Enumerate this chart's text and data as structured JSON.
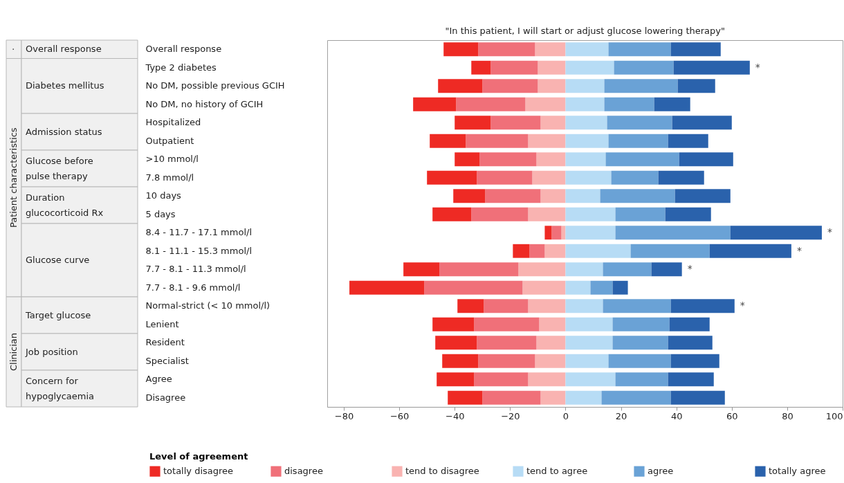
{
  "chart_data": {
    "type": "bar",
    "orientation": "horizontal",
    "stacked": true,
    "title": "\"In this patient, I will start or adjust glucose lowering therapy\"",
    "legend_title": "Level of agreement",
    "legend": "bottom",
    "grid": false,
    "categories": [
      "Overall response",
      "Type 2 diabetes",
      "No DM, possible previous GCIH",
      "No DM, no history of GCIH",
      "Hospitalized",
      "Outpatient",
      ">10 mmol/l",
      "7.8 mmol/l",
      "10 days",
      "5 days",
      "8.4 - 11.7 - 17.1 mmol/l",
      "8.1 - 11.1 - 15.3 mmol/l",
      "7.7 - 8.1 - 11.3 mmol/l",
      "7.7 - 8.1 - 9.6 mmol/l",
      "Normal-strict (< 10 mmol/l)",
      "Lenient",
      "Resident",
      "Specialist",
      "Agree",
      "Disagree"
    ],
    "xlim": [
      -86,
      100
    ],
    "xticks": [
      -80,
      -60,
      -40,
      -20,
      0,
      20,
      40,
      60,
      80,
      100
    ],
    "series": [
      {
        "name": "tend to disagree",
        "color": "#f9b3b1",
        "values": [
          -11,
          -10,
          -10,
          -14.5,
          -9,
          -13.5,
          -10.5,
          -12,
          -9,
          -13.5,
          -1.5,
          -7.5,
          -17,
          -15.5,
          -13.5,
          -9.5,
          -10.5,
          -11,
          -13.5,
          -9
        ]
      },
      {
        "name": "disagree",
        "color": "#f07079",
        "values": [
          -20.5,
          -17,
          -20,
          -25,
          -18,
          -22.5,
          -20.5,
          -20,
          -20,
          -20.5,
          -3.5,
          -5.5,
          -28.5,
          -35.5,
          -16,
          -23.5,
          -21.5,
          -20.5,
          -19.5,
          -21
        ]
      },
      {
        "name": "totally disagree",
        "color": "#ee2a24",
        "values": [
          -12.5,
          -7,
          -16,
          -15.5,
          -13,
          -13,
          -9,
          -18,
          -11.5,
          -14,
          -2.5,
          -6,
          -13,
          -27,
          -9.5,
          -15,
          -15,
          -13,
          -13.5,
          -12.5
        ]
      },
      {
        "name": "tend to agree",
        "color": "#b7dcf5",
        "values": [
          15.5,
          17.5,
          14,
          14,
          15,
          15.5,
          14.5,
          16.5,
          12.5,
          18,
          18,
          23.5,
          13.5,
          9,
          13.5,
          17,
          17,
          15.5,
          18,
          13
        ]
      },
      {
        "name": "agree",
        "color": "#6aa2d6",
        "values": [
          22.5,
          21.5,
          26.5,
          18,
          23.5,
          21.5,
          26.5,
          17,
          27,
          18,
          41.5,
          28.5,
          17.5,
          8,
          24.5,
          20.5,
          20,
          22.5,
          19,
          25
        ]
      },
      {
        "name": "totally agree",
        "color": "#2a62ac",
        "values": [
          18,
          27.5,
          13.5,
          13,
          21.5,
          14.5,
          19.5,
          16.5,
          20,
          16.5,
          33,
          29.5,
          11,
          5.5,
          23,
          14.5,
          16,
          17.5,
          16.5,
          19.5
        ]
      }
    ],
    "annotations": [
      "·",
      "Overall response",
      "Patient characteristics",
      "Diabetes mellitus",
      "Admission status",
      "Glucose before pulse therapy",
      "Duration glucocorticoid Rx",
      "Glucose curve",
      "Clinician",
      "Target glucose",
      "Job position",
      "Concern for hypoglycaemia",
      {
        "text": "*",
        "x": 66.5,
        "y": "Type 2 diabetes"
      },
      {
        "text": "*",
        "x": 92.5,
        "y": "8.4 - 11.7 - 17.1 mmol/l"
      },
      {
        "text": "*",
        "x": 81.5,
        "y": "8.1 - 11.1 - 15.3 mmol/l"
      },
      {
        "text": "*",
        "x": 42,
        "y": "7.7 - 8.1 - 11.3 mmol/l"
      },
      {
        "text": "*",
        "x": 61,
        "y": "Normal-strict (< 10 mmol/l)"
      }
    ]
  }
}
